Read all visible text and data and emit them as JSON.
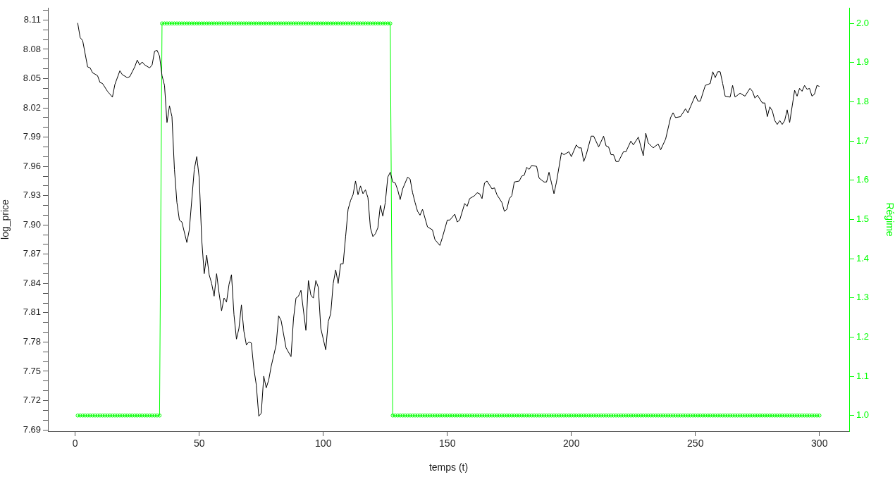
{
  "chart_data": {
    "type": "line",
    "xlabel": "temps (t)",
    "ylabel": "log_price",
    "y2label": "Régime",
    "x": [
      1,
      2,
      3,
      4,
      5,
      6,
      7,
      8,
      9,
      10,
      11,
      12,
      13,
      14,
      15,
      16,
      17,
      18,
      19,
      20,
      21,
      22,
      23,
      24,
      25,
      26,
      27,
      28,
      29,
      30,
      31,
      32,
      33,
      34,
      35,
      36,
      37,
      38,
      39,
      40,
      41,
      42,
      43,
      44,
      45,
      46,
      47,
      48,
      49,
      50,
      51,
      52,
      53,
      54,
      55,
      56,
      57,
      58,
      59,
      60,
      61,
      62,
      63,
      64,
      65,
      66,
      67,
      68,
      69,
      70,
      71,
      72,
      73,
      74,
      75,
      76,
      77,
      78,
      79,
      80,
      81,
      82,
      83,
      84,
      85,
      86,
      87,
      88,
      89,
      90,
      91,
      92,
      93,
      94,
      95,
      96,
      97,
      98,
      99,
      100,
      101,
      102,
      103,
      104,
      105,
      106,
      107,
      108,
      109,
      110,
      111,
      112,
      113,
      114,
      115,
      116,
      117,
      118,
      119,
      120,
      121,
      122,
      123,
      124,
      125,
      126,
      127,
      128,
      129,
      130,
      131,
      132,
      133,
      134,
      135,
      136,
      137,
      138,
      139,
      140,
      141,
      142,
      143,
      144,
      145,
      146,
      147,
      148,
      149,
      150,
      151,
      152,
      153,
      154,
      155,
      156,
      157,
      158,
      159,
      160,
      161,
      162,
      163,
      164,
      165,
      166,
      167,
      168,
      169,
      170,
      171,
      172,
      173,
      174,
      175,
      176,
      177,
      178,
      179,
      180,
      181,
      182,
      183,
      184,
      185,
      186,
      187,
      188,
      189,
      190,
      191,
      192,
      193,
      194,
      195,
      196,
      197,
      198,
      199,
      200,
      201,
      202,
      203,
      204,
      205,
      206,
      207,
      208,
      209,
      210,
      211,
      212,
      213,
      214,
      215,
      216,
      217,
      218,
      219,
      220,
      221,
      222,
      223,
      224,
      225,
      226,
      227,
      228,
      229,
      230,
      231,
      232,
      233,
      234,
      235,
      236,
      237,
      238,
      239,
      240,
      241,
      242,
      243,
      244,
      245,
      246,
      247,
      248,
      249,
      250,
      251,
      252,
      253,
      254,
      255,
      256,
      257,
      258,
      259,
      260,
      261,
      262,
      263,
      264,
      265,
      266,
      267,
      268,
      269,
      270,
      271,
      272,
      273,
      274,
      275,
      276,
      277,
      278,
      279,
      280,
      281,
      282,
      283,
      284,
      285,
      286,
      287,
      288,
      289,
      290,
      291,
      292,
      293,
      294,
      295,
      296,
      297,
      298,
      299,
      300
    ],
    "series": [
      {
        "color": "#000000",
        "marker": "none",
        "x": [
          1,
          2,
          3,
          5,
          6,
          7,
          9,
          10,
          11,
          13,
          14,
          15,
          16,
          18,
          19,
          21,
          22,
          24,
          25,
          26,
          27,
          28,
          30,
          31,
          32,
          33,
          34,
          35,
          36,
          37,
          38,
          39,
          40,
          41,
          42,
          43,
          45,
          46,
          48,
          49,
          50,
          51,
          52,
          53,
          54,
          55,
          56,
          57,
          58,
          59,
          60,
          61,
          62,
          63,
          64,
          65,
          66,
          67,
          68,
          69,
          70,
          71,
          72,
          73,
          74,
          75,
          76,
          77,
          78,
          79,
          81,
          82,
          83,
          85,
          87,
          88,
          89,
          90,
          91,
          93,
          94,
          95,
          96,
          97,
          98,
          99,
          101,
          102,
          103,
          104,
          105,
          106,
          107,
          108,
          109,
          110,
          111,
          112,
          113,
          114,
          115,
          116,
          117,
          118,
          119,
          120,
          121,
          122,
          123,
          124,
          125,
          126,
          127,
          128,
          129,
          130,
          131,
          132,
          134,
          135,
          136,
          137,
          138,
          139,
          140,
          141,
          142,
          144,
          145,
          147,
          148,
          150,
          151,
          153,
          154,
          155,
          157,
          158,
          159,
          161,
          162,
          163,
          164,
          165,
          166,
          168,
          169,
          170,
          172,
          173,
          174,
          175,
          176,
          177,
          179,
          180,
          181,
          182,
          183,
          184,
          186,
          187,
          189,
          190,
          191,
          192,
          193,
          194,
          196,
          197,
          199,
          200,
          202,
          203,
          204,
          205,
          206,
          208,
          209,
          211,
          213,
          214,
          215,
          216,
          217,
          218,
          219,
          221,
          222,
          224,
          225,
          227,
          229,
          230,
          231,
          233,
          235,
          236,
          238,
          240,
          241,
          242,
          244,
          246,
          247,
          248,
          250,
          251,
          252,
          254,
          256,
          257,
          258,
          259,
          260,
          261,
          262,
          264,
          265,
          266,
          268,
          270,
          272,
          273,
          274,
          275,
          277,
          278,
          279,
          280,
          281,
          282,
          283,
          284,
          285,
          286,
          287,
          288,
          290,
          291,
          292,
          293,
          294,
          295,
          296,
          297,
          298,
          299,
          300
        ],
        "values": [
          8.107,
          8.092,
          8.089,
          8.062,
          8.061,
          8.056,
          8.053,
          8.046,
          8.045,
          8.037,
          8.034,
          8.031,
          8.044,
          8.058,
          8.054,
          8.051,
          8.052,
          8.062,
          8.069,
          8.064,
          8.067,
          8.064,
          8.061,
          8.064,
          8.078,
          8.079,
          8.073,
          8.053,
          8.043,
          8.005,
          8.022,
          8.011,
          7.957,
          7.923,
          7.905,
          7.903,
          7.882,
          7.895,
          7.957,
          7.97,
          7.948,
          7.885,
          7.85,
          7.869,
          7.849,
          7.84,
          7.827,
          7.85,
          7.83,
          7.812,
          7.825,
          7.821,
          7.839,
          7.849,
          7.808,
          7.783,
          7.794,
          7.818,
          7.791,
          7.777,
          7.78,
          7.779,
          7.753,
          7.736,
          7.704,
          7.707,
          7.745,
          7.733,
          7.741,
          7.755,
          7.777,
          7.807,
          7.802,
          7.774,
          7.765,
          7.804,
          7.825,
          7.827,
          7.833,
          7.792,
          7.843,
          7.828,
          7.825,
          7.843,
          7.836,
          7.794,
          7.772,
          7.801,
          7.809,
          7.84,
          7.854,
          7.84,
          7.86,
          7.86,
          7.888,
          7.916,
          7.925,
          7.931,
          7.945,
          7.931,
          7.94,
          7.932,
          7.936,
          7.928,
          7.897,
          7.888,
          7.891,
          7.897,
          7.92,
          7.909,
          7.923,
          7.949,
          7.954,
          7.944,
          7.943,
          7.936,
          7.926,
          7.937,
          7.949,
          7.947,
          7.933,
          7.923,
          7.914,
          7.91,
          7.916,
          7.907,
          7.898,
          7.895,
          7.885,
          7.879,
          7.887,
          7.905,
          7.905,
          7.911,
          7.903,
          7.905,
          7.922,
          7.919,
          7.927,
          7.93,
          7.933,
          7.932,
          7.927,
          7.943,
          7.945,
          7.937,
          7.938,
          7.931,
          7.923,
          7.914,
          7.916,
          7.927,
          7.93,
          7.944,
          7.945,
          7.95,
          7.951,
          7.959,
          7.957,
          7.961,
          7.96,
          7.948,
          7.944,
          7.944,
          7.954,
          7.943,
          7.932,
          7.944,
          7.974,
          7.972,
          7.975,
          7.97,
          7.982,
          7.979,
          7.979,
          7.965,
          7.972,
          7.991,
          7.991,
          7.98,
          7.991,
          7.981,
          7.98,
          7.972,
          7.972,
          7.965,
          7.965,
          7.975,
          7.975,
          7.986,
          7.982,
          7.99,
          7.971,
          7.994,
          7.984,
          7.979,
          7.983,
          7.977,
          7.988,
          8.01,
          8.015,
          8.01,
          8.011,
          8.019,
          8.015,
          8.021,
          8.033,
          8.027,
          8.027,
          8.043,
          8.045,
          8.057,
          8.051,
          8.057,
          8.057,
          8.045,
          8.032,
          8.031,
          8.043,
          8.031,
          8.035,
          8.032,
          8.04,
          8.037,
          8.03,
          8.033,
          8.025,
          8.025,
          8.011,
          8.021,
          8.017,
          8.007,
          8.003,
          8.007,
          8.003,
          8.007,
          8.018,
          8.005,
          8.038,
          8.032,
          8.04,
          8.037,
          8.043,
          8.039,
          8.04,
          8.032,
          8.034,
          8.043,
          8.042
        ]
      },
      {
        "color": "#00ff00",
        "marker": "circle",
        "axis": "y2",
        "values": [
          1,
          1,
          1,
          1,
          1,
          1,
          1,
          1,
          1,
          1,
          1,
          1,
          1,
          1,
          1,
          1,
          1,
          1,
          1,
          1,
          1,
          1,
          1,
          1,
          1,
          1,
          1,
          1,
          1,
          1,
          1,
          1,
          1,
          1,
          2,
          2,
          2,
          2,
          2,
          2,
          2,
          2,
          2,
          2,
          2,
          2,
          2,
          2,
          2,
          2,
          2,
          2,
          2,
          2,
          2,
          2,
          2,
          2,
          2,
          2,
          2,
          2,
          2,
          2,
          2,
          2,
          2,
          2,
          2,
          2,
          2,
          2,
          2,
          2,
          2,
          2,
          2,
          2,
          2,
          2,
          2,
          2,
          2,
          2,
          2,
          2,
          2,
          2,
          2,
          2,
          2,
          2,
          2,
          2,
          2,
          2,
          2,
          2,
          2,
          2,
          2,
          2,
          2,
          2,
          2,
          2,
          2,
          2,
          2,
          2,
          2,
          2,
          2,
          2,
          2,
          2,
          2,
          2,
          2,
          2,
          2,
          2,
          2,
          2,
          2,
          2,
          2,
          1,
          1,
          1,
          1,
          1,
          1,
          1,
          1,
          1,
          1,
          1,
          1,
          1,
          1,
          1,
          1,
          1,
          1,
          1,
          1,
          1,
          1,
          1,
          1,
          1,
          1,
          1,
          1,
          1,
          1,
          1,
          1,
          1,
          1,
          1,
          1,
          1,
          1,
          1,
          1,
          1,
          1,
          1,
          1,
          1,
          1,
          1,
          1,
          1,
          1,
          1,
          1,
          1,
          1,
          1,
          1,
          1,
          1,
          1,
          1,
          1,
          1,
          1,
          1,
          1,
          1,
          1,
          1,
          1,
          1,
          1,
          1,
          1,
          1,
          1,
          1,
          1,
          1,
          1,
          1,
          1,
          1,
          1,
          1,
          1,
          1,
          1,
          1,
          1,
          1,
          1,
          1,
          1,
          1,
          1,
          1,
          1,
          1,
          1,
          1,
          1,
          1,
          1,
          1,
          1,
          1,
          1,
          1,
          1,
          1,
          1,
          1,
          1,
          1,
          1,
          1,
          1,
          1,
          1,
          1,
          1,
          1,
          1,
          1,
          1,
          1,
          1,
          1,
          1,
          1,
          1,
          1,
          1,
          1,
          1,
          1,
          1,
          1,
          1,
          1,
          1,
          1,
          1,
          1,
          1,
          1,
          1,
          1,
          1,
          1,
          1,
          1,
          1,
          1,
          1,
          1,
          1,
          1,
          1,
          1,
          1,
          1,
          1,
          1,
          1,
          1,
          1,
          1,
          1,
          1,
          1,
          1,
          1
        ]
      }
    ],
    "xlim": [
      -11,
      312
    ],
    "xticks": [
      0,
      50,
      100,
      150,
      200,
      250,
      300
    ],
    "ylim": [
      7.6886,
      8.1226
    ],
    "yticks": [
      7.69,
      {
        "value": 7.7,
        "label": null
      },
      {
        "value": 7.71,
        "label": null
      },
      7.72,
      {
        "value": 7.73,
        "label": null
      },
      {
        "value": 7.74,
        "label": null
      },
      7.75,
      {
        "value": 7.76,
        "label": null
      },
      {
        "value": 7.77,
        "label": null
      },
      7.78,
      {
        "value": 7.79,
        "label": null
      },
      {
        "value": 7.8,
        "label": null
      },
      7.81,
      {
        "value": 7.82,
        "label": null
      },
      {
        "value": 7.83,
        "label": null
      },
      7.84,
      {
        "value": 7.85,
        "label": null
      },
      {
        "value": 7.86,
        "label": null
      },
      7.87,
      {
        "value": 7.88,
        "label": null
      },
      {
        "value": 7.89,
        "label": null
      },
      {
        "value": 7.9,
        "label": "7.90"
      },
      {
        "value": 7.91,
        "label": null
      },
      {
        "value": 7.92,
        "label": null
      },
      7.93,
      {
        "value": 7.94,
        "label": null
      },
      {
        "value": 7.95,
        "label": null
      },
      7.96,
      {
        "value": 7.97,
        "label": null
      },
      {
        "value": 7.98,
        "label": null
      },
      7.99,
      {
        "value": 8.0,
        "label": null
      },
      {
        "value": 8.01,
        "label": null
      },
      8.02,
      {
        "value": 8.03,
        "label": null
      },
      {
        "value": 8.04,
        "label": null
      },
      8.05,
      {
        "value": 8.06,
        "label": null
      },
      {
        "value": 8.07,
        "label": null
      },
      8.08,
      {
        "value": 8.09,
        "label": null
      },
      {
        "value": 8.1,
        "label": null
      },
      8.11,
      {
        "value": 8.12,
        "label": null
      }
    ],
    "y2lim": [
      0.96,
      2.04
    ],
    "y2ticks": [
      {
        "value": 1,
        "label": "1.0"
      },
      1.1,
      1.2,
      1.3,
      1.4,
      1.5,
      1.6,
      1.7,
      1.8,
      1.9,
      {
        "value": 2,
        "label": "2.0"
      }
    ]
  }
}
